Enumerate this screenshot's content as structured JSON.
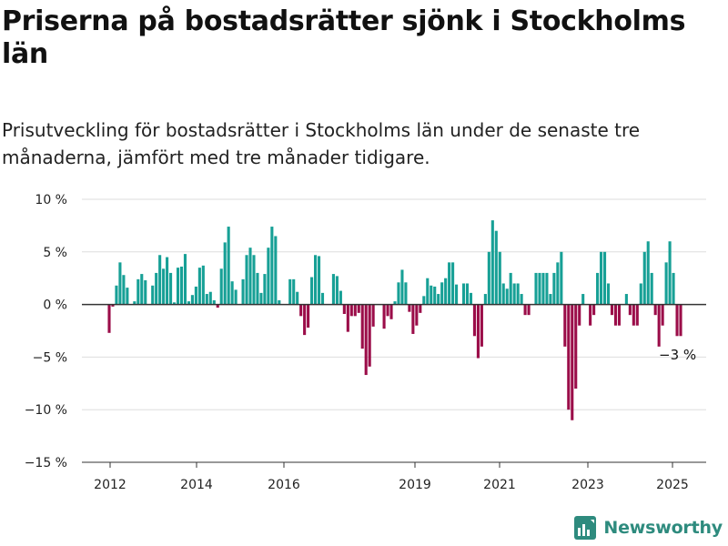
{
  "header": {
    "title": "Priserna på bostadsrätter sjönk i Stockholms län",
    "subtitle": "Prisutveckling för bostadsrätter i Stockholms län under de senaste tre månaderna, jämfört med tre månader tidigare."
  },
  "brand": {
    "name": "Newsworthy",
    "icon": "newsworthy-bar-chart-logo-icon",
    "color": "#2e8b7e"
  },
  "colors": {
    "positive": "#17a096",
    "negative": "#9b0d49",
    "grid": "#dddddd",
    "zero_line": "#333333"
  },
  "chart_data": {
    "type": "bar",
    "title": "Priserna på bostadsrätter sjönk i Stockholms län",
    "subtitle": "Prisutveckling för bostadsrätter i Stockholms län under de senaste tre månaderna, jämfört med tre månader tidigare.",
    "ylabel": "",
    "xlabel": "",
    "unit": "%",
    "ylim": [
      -15,
      10
    ],
    "yticks": [
      10,
      5,
      0,
      -5,
      -10,
      -15
    ],
    "ytick_labels": [
      "10 %",
      "5 %",
      "0 %",
      "−5 %",
      "−10 %",
      "−15 %"
    ],
    "xticks": [
      "2012",
      "2014",
      "2016",
      "2019",
      "2021",
      "2023",
      "2025"
    ],
    "grid": true,
    "annotation": {
      "text": "−3 %",
      "label_for": "last bar"
    },
    "series": [
      {
        "name": "",
        "values": [
          -2.7,
          -0.2,
          1.8,
          4.0,
          2.8,
          1.6,
          0.0,
          0.3,
          2.4,
          2.9,
          2.3,
          0.0,
          1.8,
          3.0,
          4.7,
          3.4,
          4.5,
          3.0,
          0.2,
          3.5,
          3.6,
          4.8,
          0.3,
          0.9,
          1.7,
          3.5,
          3.7,
          1.0,
          1.2,
          0.4,
          -0.3,
          3.4,
          5.9,
          7.4,
          2.2,
          1.4,
          0.0,
          2.4,
          4.7,
          5.4,
          4.7,
          3.0,
          1.1,
          2.9,
          5.4,
          7.4,
          6.5,
          0.4,
          0.0,
          0.0,
          2.4,
          2.4,
          1.2,
          -1.1,
          -2.9,
          -2.2,
          2.6,
          4.7,
          4.6,
          1.1,
          0.0,
          0.0,
          2.9,
          2.7,
          1.3,
          -0.9,
          -2.6,
          -1.1,
          -1.1,
          -0.8,
          -4.2,
          -6.7,
          -5.9,
          -2.1,
          0.0,
          0.0,
          -2.3,
          -1.1,
          -1.4,
          0.3,
          2.1,
          3.3,
          2.1,
          -0.7,
          -2.8,
          -2.0,
          -0.8,
          0.8,
          2.5,
          1.8,
          1.7,
          1.0,
          2.1,
          2.5,
          4.0,
          4.0,
          1.9,
          0.0,
          2.0,
          2.0,
          1.1,
          -3.0,
          -5.1,
          -4.0,
          1.0,
          5.0,
          8.0,
          7.0,
          5.0,
          2.0,
          1.5,
          3.0,
          2.0,
          2.0,
          1.0,
          -1.0,
          -1.0,
          0.0,
          3.0,
          3.0,
          3.0,
          3.0,
          1.0,
          3.0,
          4.0,
          5.0,
          -4.0,
          -10.0,
          -11.0,
          -8.0,
          -2.0,
          1.0,
          0.0,
          -2.0,
          -1.0,
          3.0,
          5.0,
          5.0,
          2.0,
          -1.0,
          -2.0,
          -2.0,
          0.0,
          1.0,
          -1.0,
          -2.0,
          -2.0,
          2.0,
          5.0,
          6.0,
          3.0,
          -1.0,
          -4.0,
          -2.0,
          4.0,
          6.0,
          3.0,
          -3.0,
          -3.0
        ]
      }
    ]
  }
}
